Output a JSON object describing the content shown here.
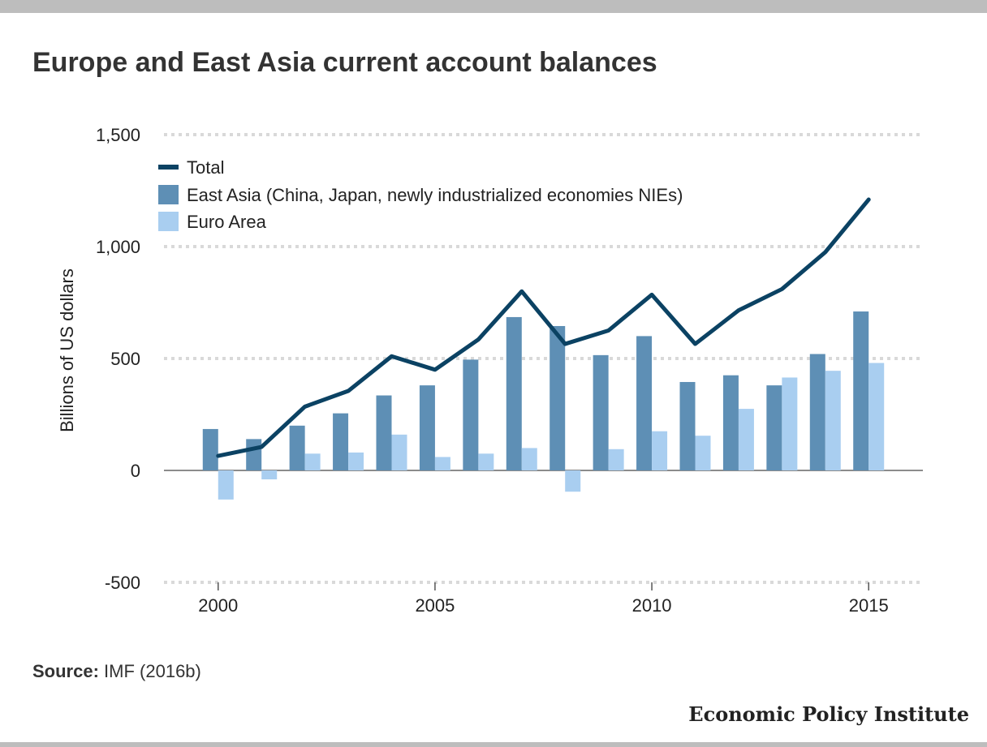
{
  "title": "Europe and East Asia current account balances",
  "source": {
    "label": "Source:",
    "text": "IMF (2016b)"
  },
  "brand": "Economic Policy Institute",
  "colors": {
    "total": "#0b4263",
    "east_asia": "#5e8fb5",
    "euro_area": "#a9cef0",
    "grid": "#d9d9d9",
    "zero_line": "#8c8c8c"
  },
  "chart_data": {
    "type": "bar",
    "ylabel": "Billions of US dollars",
    "ylim": [
      -500,
      1500
    ],
    "yticks": [
      -500,
      0,
      500,
      1000,
      1500
    ],
    "ytick_labels": [
      "-500",
      "0",
      "500",
      "1,000",
      "1,500"
    ],
    "xlim": [
      1998.75,
      2016.25
    ],
    "xticks": [
      2000,
      2005,
      2010,
      2015
    ],
    "xtick_labels": [
      "2000",
      "2005",
      "2010",
      "2015"
    ],
    "grid": true,
    "legend_position": "top-left",
    "x": [
      2000,
      2001,
      2002,
      2003,
      2004,
      2005,
      2006,
      2007,
      2008,
      2009,
      2010,
      2011,
      2012,
      2013,
      2014,
      2015
    ],
    "series": [
      {
        "name": "Total",
        "type": "line",
        "values": [
          65,
          105,
          285,
          355,
          510,
          450,
          585,
          800,
          565,
          625,
          785,
          565,
          715,
          810,
          975,
          1210
        ]
      },
      {
        "name": "East Asia (China, Japan, newly industrialized economies NIEs)",
        "type": "bar",
        "values": [
          185,
          140,
          200,
          255,
          335,
          380,
          495,
          685,
          645,
          515,
          600,
          395,
          425,
          380,
          520,
          710
        ]
      },
      {
        "name": "Euro Area",
        "type": "bar",
        "values": [
          -130,
          -40,
          75,
          80,
          160,
          60,
          75,
          100,
          -95,
          95,
          175,
          155,
          275,
          415,
          445,
          480
        ]
      }
    ]
  }
}
